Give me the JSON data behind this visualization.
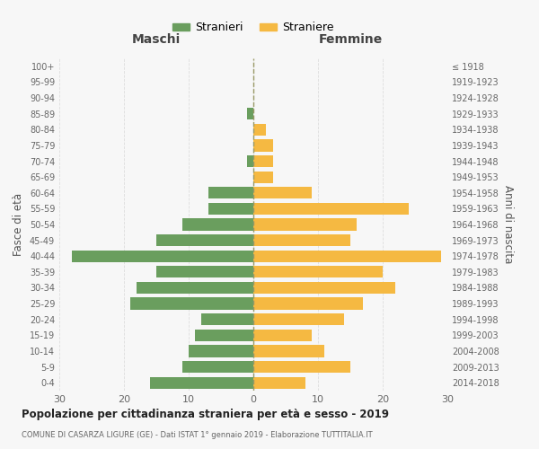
{
  "age_groups": [
    "0-4",
    "5-9",
    "10-14",
    "15-19",
    "20-24",
    "25-29",
    "30-34",
    "35-39",
    "40-44",
    "45-49",
    "50-54",
    "55-59",
    "60-64",
    "65-69",
    "70-74",
    "75-79",
    "80-84",
    "85-89",
    "90-94",
    "95-99",
    "100+"
  ],
  "birth_years": [
    "2014-2018",
    "2009-2013",
    "2004-2008",
    "1999-2003",
    "1994-1998",
    "1989-1993",
    "1984-1988",
    "1979-1983",
    "1974-1978",
    "1969-1973",
    "1964-1968",
    "1959-1963",
    "1954-1958",
    "1949-1953",
    "1944-1948",
    "1939-1943",
    "1934-1938",
    "1929-1933",
    "1924-1928",
    "1919-1923",
    "≤ 1918"
  ],
  "males": [
    16,
    11,
    10,
    9,
    8,
    19,
    18,
    15,
    28,
    15,
    11,
    7,
    7,
    0,
    1,
    0,
    0,
    1,
    0,
    0,
    0
  ],
  "females": [
    8,
    15,
    11,
    9,
    14,
    17,
    22,
    20,
    29,
    15,
    16,
    24,
    9,
    3,
    3,
    3,
    2,
    0,
    0,
    0,
    0
  ],
  "male_color": "#6a9e5e",
  "female_color": "#f5b942",
  "title": "Popolazione per cittadinanza straniera per età e sesso - 2019",
  "subtitle": "COMUNE DI CASARZA LIGURE (GE) - Dati ISTAT 1° gennaio 2019 - Elaborazione TUTTITALIA.IT",
  "xlabel_left": "Maschi",
  "xlabel_right": "Femmine",
  "ylabel_left": "Fasce di età",
  "ylabel_right": "Anni di nascita",
  "legend_male": "Stranieri",
  "legend_female": "Straniere",
  "xlim": 30,
  "background_color": "#f7f7f7",
  "grid_color": "#dddddd"
}
